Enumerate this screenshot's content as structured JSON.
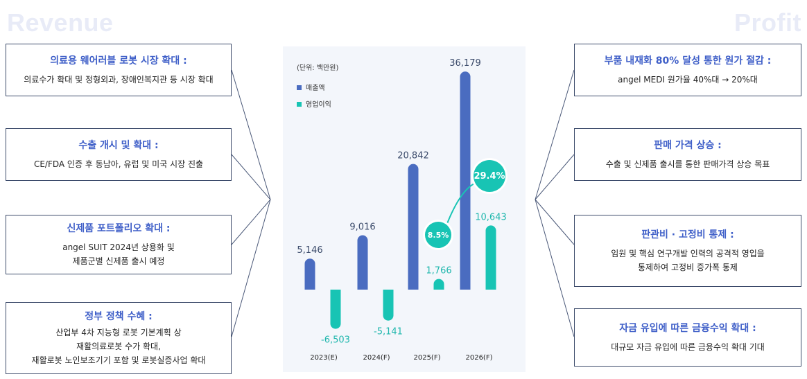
{
  "headers": {
    "left": "Revenue",
    "right": "Profit"
  },
  "left_cards": [
    {
      "title": "의료용 웨어러블 로봇 시장 확대 :",
      "lines": [
        "의료수가 확대 및 정형외과, 장애인복지관 등 시장 확대"
      ]
    },
    {
      "title": "수출 개시 및 확대 :",
      "lines": [
        "CE/FDA 인증 후 동남아, 유럽 및 미국 시장 진출"
      ]
    },
    {
      "title": "신제품 포트폴리오 확대 :",
      "lines": [
        "angel SUIT 2024년 상용화 및",
        "제품군별 신제품 출시 예정"
      ]
    },
    {
      "title": "정부 정책 수혜 :",
      "lines": [
        "산업부 4차 지능형 로봇 기본계획 상",
        "재활의료로봇 수가 확대,",
        "재활로봇 노인보조기기 포함 및 로봇실증사업 확대"
      ]
    }
  ],
  "right_cards": [
    {
      "title": "부품 내재화 80% 달성 통한 원가 절감 :",
      "lines": [
        "angel MEDI 원가율 40%대 → 20%대"
      ]
    },
    {
      "title": "판매 가격 상승 :",
      "lines": [
        "수출 및 신제품 출시를 통한 판매가격 상승 목표"
      ]
    },
    {
      "title": "판관비 · 고정비 통제 :",
      "lines": [
        "임원 및 핵심 연구개발 인력의 공격적 영입을",
        "통제하여 고정비 증가폭 통제"
      ]
    },
    {
      "title": "자금 유입에 따른 금융수익 확대 :",
      "lines": [
        "대규모 자금 유입에 따른 금융수익 확대 기대"
      ]
    }
  ],
  "chart_data": {
    "type": "bar",
    "unit_label": "(단위: 백만원)",
    "categories": [
      "2023(E)",
      "2024(F)",
      "2025(F)",
      "2026(F)"
    ],
    "series": [
      {
        "name": "매출액",
        "color": "#4a6cc0",
        "values": [
          5146,
          9016,
          20842,
          36179
        ],
        "labels": [
          "5,146",
          "9,016",
          "20,842",
          "36,179"
        ],
        "label_color": "#3a4a6a"
      },
      {
        "name": "영업이익",
        "color": "#18c4b4",
        "values": [
          -6503,
          -5141,
          1766,
          10643
        ],
        "labels": [
          "-6,503",
          "-5,141",
          "1,766",
          "10,643"
        ],
        "label_color": "#1fb7ad"
      }
    ],
    "margin_badges": [
      {
        "category": "2025(F)",
        "text": "8.5%"
      },
      {
        "category": "2026(F)",
        "text": "29.4%"
      }
    ],
    "ylim": [
      -9000,
      37500
    ],
    "grid": false,
    "legend_position": "top-left"
  }
}
